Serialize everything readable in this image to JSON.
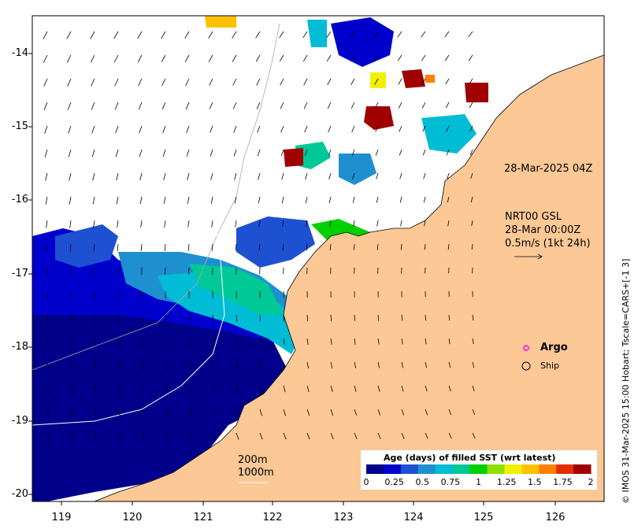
{
  "map": {
    "timestamp_label": "28-Mar-2025 04Z",
    "current_product": "NRT00 GSL",
    "current_date": "28-Mar 00:00Z",
    "current_scale": "0.5m/s (1kt 24h)",
    "contour_200": "200m",
    "contour_1000": "1000m",
    "legend_argo": "Argo",
    "legend_ship": "Ship",
    "side_credit": "© IMOS 31-Mar-2025 15:00 Hobart; Tscale=CARS+[-1 3]",
    "colorbar_title": "Age (days) of filled SST (wrt latest)",
    "colorbar_ticks": [
      "0",
      "0.25",
      "0.5",
      "0.75",
      "1",
      "1.25",
      "1.5",
      "1.75",
      "2"
    ],
    "colorbar_colors": [
      "#00008b",
      "#0000cd",
      "#1e50d2",
      "#1e90d0",
      "#00bcd4",
      "#00c896",
      "#00d000",
      "#8fe000",
      "#f0f000",
      "#ffc000",
      "#ff8000",
      "#e03000",
      "#a00000"
    ],
    "lat_ticks": [
      "-14",
      "-15",
      "-16",
      "-17",
      "-18",
      "-19",
      "-20"
    ],
    "lon_ticks": [
      "119",
      "120",
      "121",
      "122",
      "123",
      "124",
      "125",
      "126"
    ],
    "land_color": "#fcc896",
    "argo_color": "#ff00ff"
  }
}
